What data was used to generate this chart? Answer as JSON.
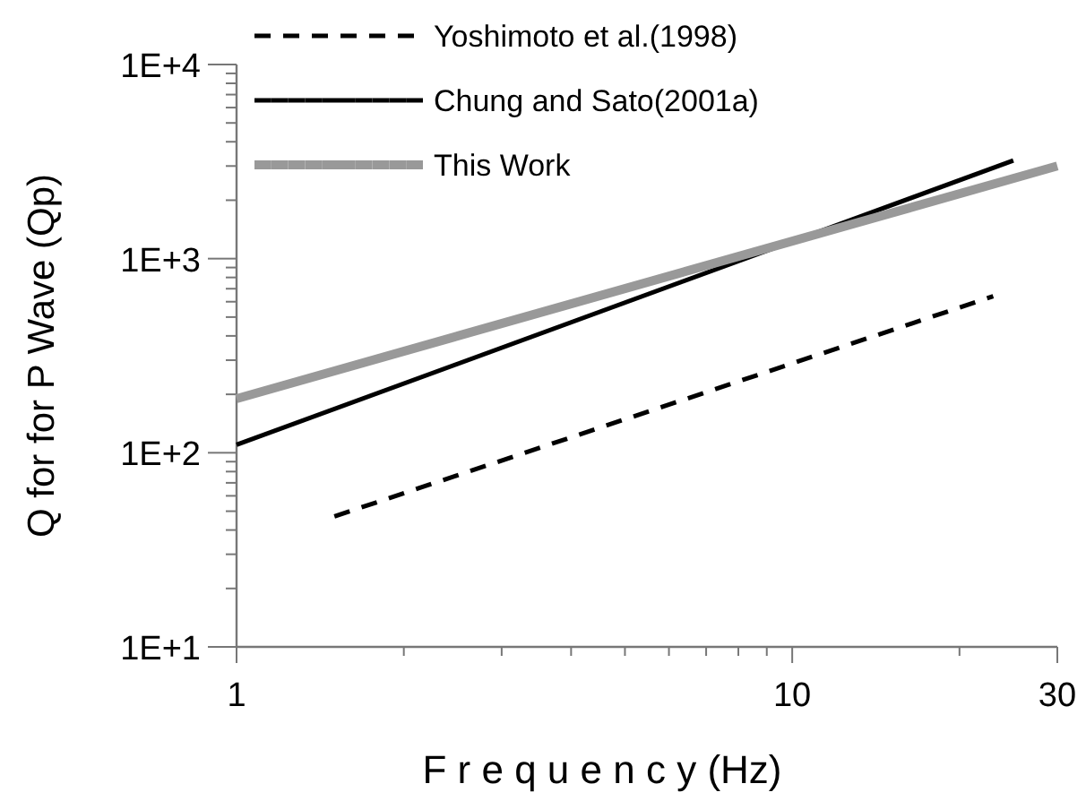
{
  "chart_data": {
    "type": "line",
    "xlabel": "F r e q u e n c y  (Hz)",
    "ylabel": "Q for for P Wave (Qp)",
    "log": "xy",
    "xlim": [
      1,
      30
    ],
    "ylim": [
      10,
      10000
    ],
    "xticks": [
      1,
      {
        "value": 2,
        "label": null
      },
      {
        "value": 3,
        "label": null
      },
      {
        "value": 4,
        "label": null
      },
      {
        "value": 5,
        "label": null
      },
      {
        "value": 6,
        "label": null
      },
      {
        "value": 7,
        "label": null
      },
      {
        "value": 8,
        "label": null
      },
      {
        "value": 9,
        "label": null
      },
      10,
      {
        "value": 20,
        "label": null
      },
      30
    ],
    "yticks": [
      {
        "value": 10,
        "label": "1E+1"
      },
      {
        "value": 20,
        "label": null
      },
      {
        "value": 30,
        "label": null
      },
      {
        "value": 40,
        "label": null
      },
      {
        "value": 50,
        "label": null
      },
      {
        "value": 60,
        "label": null
      },
      {
        "value": 70,
        "label": null
      },
      {
        "value": 80,
        "label": null
      },
      {
        "value": 90,
        "label": null
      },
      {
        "value": 100,
        "label": "1E+2"
      },
      {
        "value": 200,
        "label": null
      },
      {
        "value": 300,
        "label": null
      },
      {
        "value": 400,
        "label": null
      },
      {
        "value": 500,
        "label": null
      },
      {
        "value": 600,
        "label": null
      },
      {
        "value": 700,
        "label": null
      },
      {
        "value": 800,
        "label": null
      },
      {
        "value": 900,
        "label": null
      },
      {
        "value": 1000,
        "label": "1E+3"
      },
      {
        "value": 2000,
        "label": null
      },
      {
        "value": 3000,
        "label": null
      },
      {
        "value": 4000,
        "label": null
      },
      {
        "value": 5000,
        "label": null
      },
      {
        "value": 6000,
        "label": null
      },
      {
        "value": 7000,
        "label": null
      },
      {
        "value": 8000,
        "label": null
      },
      {
        "value": 9000,
        "label": null
      },
      {
        "value": 10000,
        "label": "1E+4"
      }
    ],
    "grid": false,
    "legend": "top left",
    "series": [
      {
        "name": "Yoshimoto et al.(1998)",
        "color": "#000000",
        "line_style": "dashed",
        "x": [
          1.5,
          23
        ],
        "values": [
          47,
          640
        ]
      },
      {
        "name": "Chung and Sato(2001a)",
        "color": "#000000",
        "line_style": "solid",
        "x": [
          1,
          25
        ],
        "values": [
          110,
          3200
        ]
      },
      {
        "name": "This Work",
        "color": "#999999",
        "line_style": "solid",
        "x": [
          1,
          30
        ],
        "values": [
          190,
          3000
        ]
      }
    ]
  }
}
